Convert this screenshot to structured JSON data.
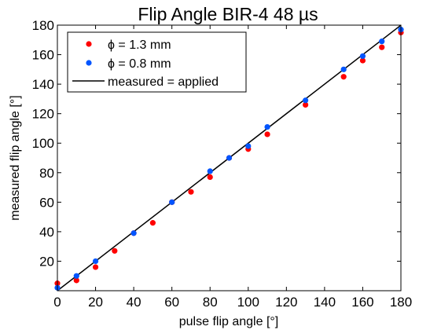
{
  "chart_data": {
    "type": "scatter",
    "title": "Flip Angle BIR-4 48 µs",
    "xlabel": "pulse flip angle [°]",
    "ylabel": "measured flip angle [°]",
    "xlim": [
      0,
      180
    ],
    "ylim": [
      0,
      180
    ],
    "xticks": [
      0,
      20,
      40,
      60,
      80,
      100,
      120,
      140,
      160,
      180
    ],
    "yticks": [
      20,
      40,
      60,
      80,
      100,
      120,
      140,
      160,
      180
    ],
    "grid": false,
    "legend_position": "top-left",
    "series": [
      {
        "name": "ϕ = 1.3 mm",
        "color": "#ff0000",
        "marker": "circle",
        "x": [
          0,
          10,
          20,
          30,
          40,
          50,
          60,
          70,
          80,
          90,
          100,
          110,
          130,
          150,
          160,
          170,
          180
        ],
        "y": [
          5,
          7,
          16,
          27,
          39,
          46,
          60,
          67,
          77,
          90,
          96,
          106,
          126,
          145,
          156,
          165,
          175
        ]
      },
      {
        "name": "ϕ = 0.8 mm",
        "color": "#0055ff",
        "marker": "circle",
        "x": [
          0,
          10,
          20,
          40,
          60,
          80,
          90,
          100,
          110,
          130,
          150,
          160,
          170,
          180
        ],
        "y": [
          2,
          10,
          20,
          39,
          60,
          81,
          90,
          98,
          111,
          129,
          150,
          159,
          169,
          177
        ]
      }
    ],
    "reference_line": {
      "name": "measured = applied",
      "color": "#000000",
      "x": [
        0,
        180
      ],
      "y": [
        0,
        180
      ]
    }
  }
}
